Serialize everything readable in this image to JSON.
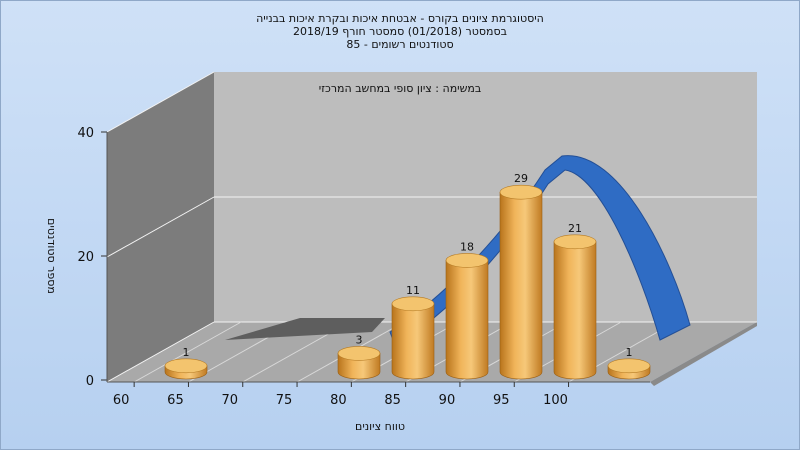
{
  "chart_data": {
    "type": "bar",
    "title": [
      "היסטוגרמת ציונים בקורס - אבטחת איכות ובקרת איכות בבנייה",
      "בסמסטר (01/2018) סמסטר חורף 2018/19",
      "סטודנטים רשומים - 85"
    ],
    "subtitle": "במשימה : ציון סופי במחשב המרכזי",
    "xlabel": "טווח ציונים",
    "ylabel": "מספר סטודנטים",
    "x_ticks": [
      "60",
      "65",
      "70",
      "75",
      "80",
      "85",
      "90",
      "95",
      "100"
    ],
    "y_ticks": [
      "0",
      "20",
      "40"
    ],
    "ylim": [
      0,
      40
    ],
    "bars": [
      {
        "x": 60,
        "value": 1
      },
      {
        "x": 77.5,
        "value": 3
      },
      {
        "x": 82.5,
        "value": 11
      },
      {
        "x": 87.5,
        "value": 18
      },
      {
        "x": 92.5,
        "value": 29
      },
      {
        "x": 97.5,
        "value": 21
      },
      {
        "x": 102.5,
        "value": 1
      }
    ],
    "grid": true,
    "colors": {
      "bar": "#e8a53c",
      "bar_top": "#f3c46e",
      "curve": "#2f6cc4",
      "dark_band": "#6a6a6a"
    }
  }
}
